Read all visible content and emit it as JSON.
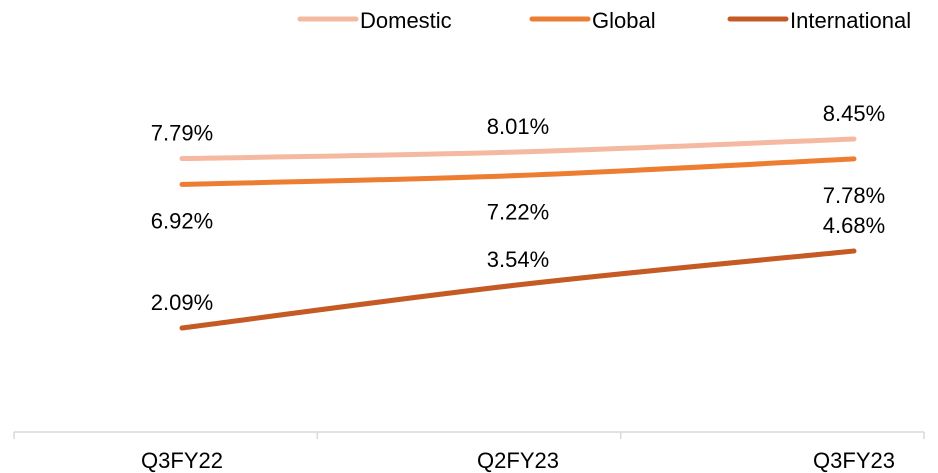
{
  "chart_data": {
    "type": "line",
    "title": "",
    "xlabel": "",
    "ylabel": "",
    "categories": [
      "Q3FY22",
      "Q2FY23",
      "Q3FY23"
    ],
    "series": [
      {
        "name": "Domestic",
        "color": "#F4B9A0",
        "values": [
          7.79,
          8.01,
          8.45
        ],
        "labels": [
          "7.79%",
          "8.01%",
          "8.45%"
        ],
        "label_placement": [
          "above",
          "above",
          "above"
        ]
      },
      {
        "name": "Global",
        "color": "#ED7D31",
        "values": [
          6.92,
          7.22,
          7.78
        ],
        "labels": [
          "6.92%",
          "7.22%",
          "7.78%"
        ],
        "label_placement": [
          "below",
          "below",
          "below"
        ]
      },
      {
        "name": "International",
        "color": "#C55A24",
        "values": [
          2.09,
          3.54,
          4.68
        ],
        "labels": [
          "2.09%",
          "3.54%",
          "4.68%"
        ],
        "label_placement": [
          "above",
          "above",
          "above"
        ]
      }
    ],
    "y_unit": "%",
    "ylim": [
      -0.5,
      10.5
    ],
    "grid": false,
    "y_axis_visible": false,
    "legend_position": "top-right"
  }
}
